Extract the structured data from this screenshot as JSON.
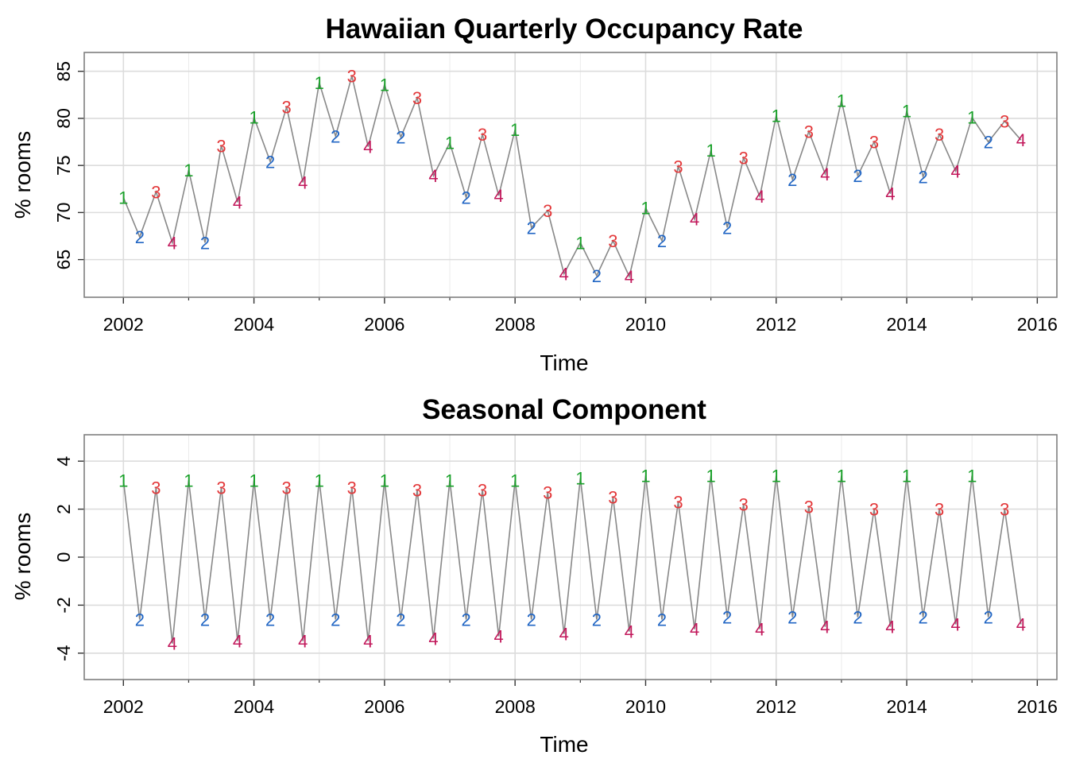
{
  "chart_data": [
    {
      "type": "line",
      "title": "Hawaiian Quarterly Occupancy Rate",
      "xlabel": "Time",
      "ylabel": "% rooms",
      "xlim": [
        2001.4,
        2016.3
      ],
      "ylim": [
        61.0,
        87.0
      ],
      "xticks": [
        "2002",
        "2004",
        "2006",
        "2008",
        "2010",
        "2012",
        "2014",
        "2016"
      ],
      "yticks": [
        "65",
        "70",
        "75",
        "80",
        "85"
      ],
      "grid": true,
      "line_color": "#888888",
      "series": [
        {
          "start": [
            2002,
            1
          ],
          "frequency": 4,
          "quarter_labels": [
            "1",
            "2",
            "3",
            "4"
          ],
          "quarter_colors": [
            "#1aa12a",
            "#2166c4",
            "#e3383a",
            "#c2185b"
          ],
          "values": [
            71.6,
            67.4,
            72.2,
            66.8,
            74.5,
            66.8,
            77.1,
            71.1,
            80.1,
            75.4,
            81.2,
            73.2,
            83.8,
            78.1,
            84.5,
            77.0,
            83.6,
            78.0,
            82.2,
            73.9,
            77.4,
            71.6,
            78.3,
            71.8,
            78.8,
            68.4,
            70.2,
            63.5,
            66.8,
            63.3,
            67.0,
            63.2,
            70.5,
            67.0,
            74.9,
            69.3,
            76.6,
            68.4,
            75.8,
            71.7,
            80.3,
            73.5,
            78.6,
            74.1,
            81.9,
            73.9,
            77.5,
            72.0,
            80.8,
            73.8,
            78.3,
            74.4,
            80.1,
            77.5,
            79.7,
            77.7
          ]
        }
      ]
    },
    {
      "type": "line",
      "title": "Seasonal Component",
      "xlabel": "Time",
      "ylabel": "% rooms",
      "xlim": [
        2001.4,
        2016.3
      ],
      "ylim": [
        -5.1,
        5.1
      ],
      "xticks": [
        "2002",
        "2004",
        "2006",
        "2008",
        "2010",
        "2012",
        "2014",
        "2016"
      ],
      "yticks": [
        "-4",
        "-2",
        "0",
        "2",
        "4"
      ],
      "grid": true,
      "line_color": "#888888",
      "series": [
        {
          "start": [
            2002,
            1
          ],
          "frequency": 4,
          "quarter_labels": [
            "1",
            "2",
            "3",
            "4"
          ],
          "quarter_colors": [
            "#1aa12a",
            "#2166c4",
            "#e3383a",
            "#c2185b"
          ],
          "values": [
            3.2,
            -2.6,
            2.9,
            -3.6,
            3.2,
            -2.6,
            2.9,
            -3.5,
            3.2,
            -2.6,
            2.9,
            -3.5,
            3.2,
            -2.6,
            2.9,
            -3.5,
            3.2,
            -2.6,
            2.8,
            -3.4,
            3.2,
            -2.6,
            2.8,
            -3.3,
            3.2,
            -2.6,
            2.7,
            -3.2,
            3.3,
            -2.6,
            2.5,
            -3.1,
            3.4,
            -2.6,
            2.3,
            -3.0,
            3.4,
            -2.5,
            2.2,
            -3.0,
            3.4,
            -2.5,
            2.1,
            -2.9,
            3.4,
            -2.5,
            2.0,
            -2.9,
            3.4,
            -2.5,
            2.0,
            -2.8,
            3.4,
            -2.5,
            2.0,
            -2.8
          ]
        }
      ]
    }
  ]
}
